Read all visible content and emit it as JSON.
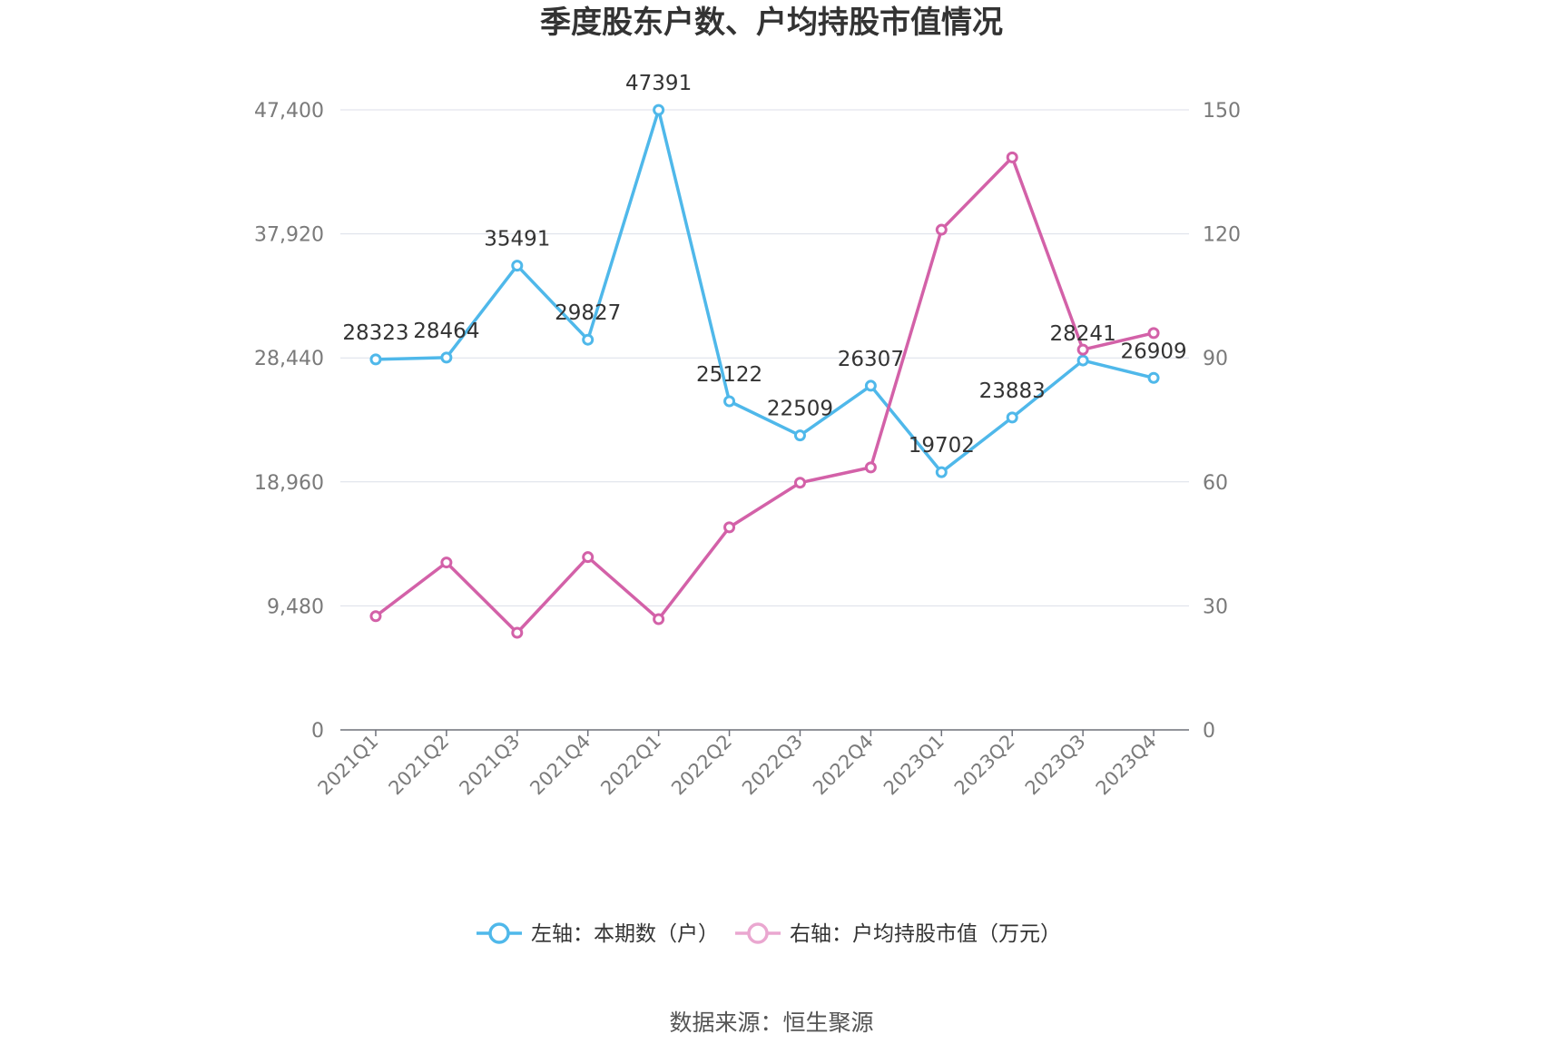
{
  "chart_data": {
    "type": "line",
    "title": "季度股东户数、户均持股市值情况",
    "source": "数据来源：恒生聚源",
    "categories": [
      "2021Q1",
      "2021Q2",
      "2021Q3",
      "2021Q4",
      "2022Q1",
      "2022Q2",
      "2022Q3",
      "2022Q4",
      "2023Q1",
      "2023Q2",
      "2023Q3",
      "2023Q4"
    ],
    "y_left": {
      "ticks": [
        0,
        9480,
        18960,
        28440,
        37920,
        47400
      ],
      "tick_labels": [
        "0",
        "9,480",
        "18,960",
        "28,440",
        "37,920",
        "47,400"
      ],
      "range": [
        0,
        47400
      ]
    },
    "y_right": {
      "ticks": [
        0,
        30,
        60,
        90,
        120,
        150
      ],
      "tick_labels": [
        "0",
        "30",
        "60",
        "90",
        "120",
        "150"
      ],
      "range": [
        0,
        150
      ]
    },
    "grid": true,
    "legend_position": "bottom",
    "series": [
      {
        "name": "左轴：本期数（户）",
        "axis": "left",
        "color": "#4fb8ea",
        "values": [
          28323,
          28464,
          35491,
          29827,
          47391,
          25122,
          22509,
          26307,
          19702,
          23883,
          28241,
          26909
        ],
        "labels": [
          "28323",
          "28464",
          "35491",
          "29827",
          "47391",
          "25122",
          "22509",
          "26307",
          "19702",
          "23883",
          "28241",
          "26909"
        ]
      },
      {
        "name": "右轴：户均持股市值（万元）",
        "axis": "right",
        "color": "#d361a8",
        "legend_color": "#eaa7d0",
        "values": [
          27.5,
          40.5,
          23.5,
          41.8,
          26.8,
          49.0,
          59.8,
          63.5,
          121.0,
          138.5,
          92.0,
          96.0
        ]
      }
    ]
  }
}
